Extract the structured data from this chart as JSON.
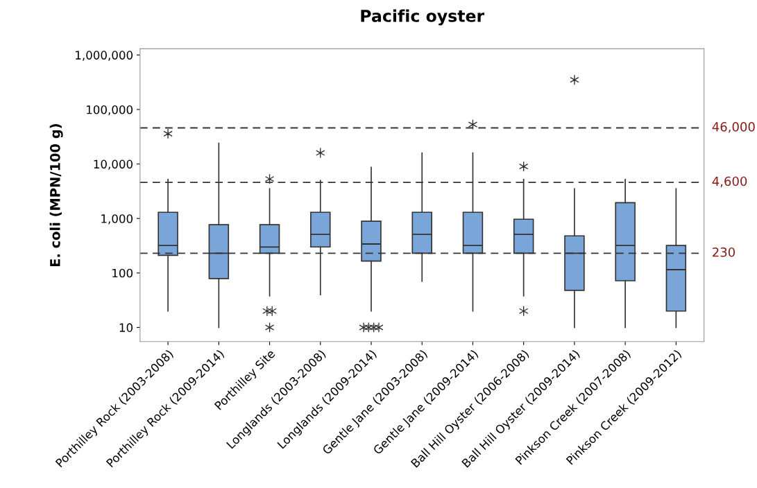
{
  "chart_data": {
    "type": "box",
    "title": "Pacific oyster",
    "ylabel": "E. coli (MPN/100 g)",
    "categories": [
      "Porthilley Rock (2003-2008)",
      "Porthilley Rock (2009-2014)",
      "Porthilley Site",
      "Longlands (2003-2008)",
      "Longlands (2009-2014)",
      "Gentle Jane (2003-2008)",
      "Gentle Jane (2009-2014)",
      "Ball Hill Oyster (2006-2008)",
      "Ball Hill Oyster (2009-2014)",
      "Pinkson Creek (2007-2008)",
      "Pinkson Creek (2009-2012)"
    ],
    "color": "#7aa5d9",
    "boxes": [
      {
        "low": 20,
        "q1": 210,
        "median": 320,
        "q3": 1300,
        "high": 5200,
        "outliers": [
          36000
        ]
      },
      {
        "low": 10,
        "q1": 79,
        "median": 230,
        "q3": 770,
        "high": 24000
      },
      {
        "low": 38,
        "q1": 230,
        "median": 300,
        "q3": 770,
        "high": 3500,
        "outliers": [
          5300,
          20,
          20,
          10
        ]
      },
      {
        "low": 40,
        "q1": 300,
        "median": 510,
        "q3": 1300,
        "high": 5000,
        "outliers": [
          16000
        ]
      },
      {
        "low": 20,
        "q1": 165,
        "median": 340,
        "q3": 890,
        "high": 8700,
        "outliers": [
          10,
          10,
          10,
          10
        ]
      },
      {
        "low": 70,
        "q1": 230,
        "median": 510,
        "q3": 1300,
        "high": 16000
      },
      {
        "low": 20,
        "q1": 230,
        "median": 320,
        "q3": 1300,
        "high": 16000,
        "outliers": [
          53000
        ]
      },
      {
        "low": 38,
        "q1": 230,
        "median": 510,
        "q3": 970,
        "high": 5200,
        "outliers": [
          9000,
          20
        ]
      },
      {
        "low": 10,
        "q1": 48,
        "median": 230,
        "q3": 480,
        "high": 3500,
        "outliers": [
          350000
        ]
      },
      {
        "low": 10,
        "q1": 72,
        "median": 320,
        "q3": 1950,
        "high": 5200
      },
      {
        "low": 10,
        "q1": 20,
        "median": 115,
        "q3": 320,
        "high": 3500
      }
    ],
    "log": true,
    "ylim": [
      5.5,
      1300000
    ],
    "yticks": [
      {
        "value": 10,
        "label": "10"
      },
      {
        "value": 100,
        "label": "100"
      },
      {
        "value": 1000,
        "label": "1,000"
      },
      {
        "value": 10000,
        "label": "10,000"
      },
      {
        "value": 100000,
        "label": "100,000"
      },
      {
        "value": 1000000,
        "label": "1,000,000"
      }
    ],
    "ref_lines": [
      {
        "axis": "y",
        "value": 46000,
        "label": "46,000",
        "color": "#333333",
        "line_style": "dashed"
      },
      {
        "axis": "y",
        "value": 4600,
        "label": "4,600",
        "color": "#333333",
        "line_style": "dashed"
      },
      {
        "axis": "y",
        "value": 230,
        "label": "230",
        "color": "#333333",
        "line_style": "dashed"
      }
    ],
    "grid": false,
    "legend": false
  }
}
